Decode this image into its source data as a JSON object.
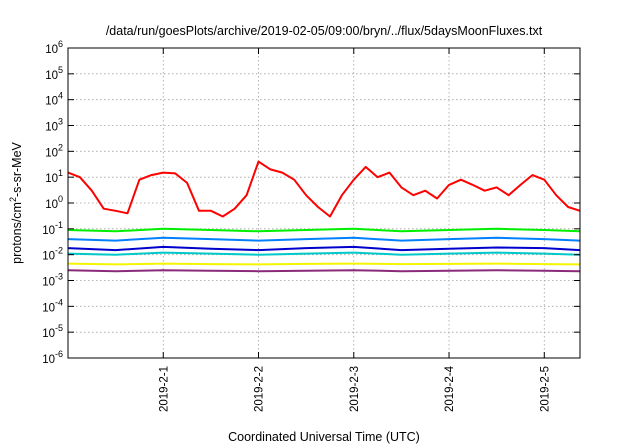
{
  "chart_data": {
    "type": "line",
    "title": "/data/run/goesPlots/archive/2019-02-05/09:00/bryn/../flux/5daysMoonFluxes.txt",
    "xlabel": "Coordinated Universal Time (UTC)",
    "ylabel_parts": {
      "a": "protons/cm",
      "sup": "2",
      "b": "-s-sr-MeV"
    },
    "ylim": [
      1e-06,
      1000000.0
    ],
    "y_scale": "log",
    "y_ticks": [
      {
        "base": "10",
        "exp": "-6",
        "value": 1e-06
      },
      {
        "base": "10",
        "exp": "-5",
        "value": 1e-05
      },
      {
        "base": "10",
        "exp": "-4",
        "value": 0.0001
      },
      {
        "base": "10",
        "exp": "-3",
        "value": 0.001
      },
      {
        "base": "10",
        "exp": "-2",
        "value": 0.01
      },
      {
        "base": "10",
        "exp": "-1",
        "value": 0.1
      },
      {
        "base": "10",
        "exp": "0",
        "value": 1
      },
      {
        "base": "10",
        "exp": "1",
        "value": 10
      },
      {
        "base": "10",
        "exp": "2",
        "value": 100
      },
      {
        "base": "10",
        "exp": "3",
        "value": 1000
      },
      {
        "base": "10",
        "exp": "4",
        "value": 10000
      },
      {
        "base": "10",
        "exp": "5",
        "value": 100000
      },
      {
        "base": "10",
        "exp": "6",
        "value": 1000000
      }
    ],
    "xlim": [
      "2019-01-31T00:00",
      "2019-02-05T09:00"
    ],
    "x_ticks": [
      {
        "label": "2019-2-1",
        "date": "2019-02-01T00:00"
      },
      {
        "label": "2019-2-2",
        "date": "2019-02-02T00:00"
      },
      {
        "label": "2019-2-3",
        "date": "2019-02-03T00:00"
      },
      {
        "label": "2019-2-4",
        "date": "2019-02-04T00:00"
      },
      {
        "label": "2019-2-5",
        "date": "2019-02-05T00:00"
      }
    ],
    "grid": true,
    "series": [
      {
        "color": "#ff0000",
        "x": [
          "2019-01-31T00:00",
          "2019-01-31T03:00",
          "2019-01-31T06:00",
          "2019-01-31T09:00",
          "2019-01-31T12:00",
          "2019-01-31T15:00",
          "2019-01-31T18:00",
          "2019-01-31T21:00",
          "2019-02-01T00:00",
          "2019-02-01T03:00",
          "2019-02-01T06:00",
          "2019-02-01T09:00",
          "2019-02-01T12:00",
          "2019-02-01T15:00",
          "2019-02-01T18:00",
          "2019-02-01T21:00",
          "2019-02-02T00:00",
          "2019-02-02T03:00",
          "2019-02-02T06:00",
          "2019-02-02T09:00",
          "2019-02-02T12:00",
          "2019-02-02T15:00",
          "2019-02-02T18:00",
          "2019-02-02T21:00",
          "2019-02-03T00:00",
          "2019-02-03T03:00",
          "2019-02-03T06:00",
          "2019-02-03T09:00",
          "2019-02-03T12:00",
          "2019-02-03T15:00",
          "2019-02-03T18:00",
          "2019-02-03T21:00",
          "2019-02-04T00:00",
          "2019-02-04T03:00",
          "2019-02-04T06:00",
          "2019-02-04T09:00",
          "2019-02-04T12:00",
          "2019-02-04T15:00",
          "2019-02-04T18:00",
          "2019-02-04T21:00",
          "2019-02-05T00:00",
          "2019-02-05T03:00",
          "2019-02-05T06:00",
          "2019-02-05T09:00"
        ],
        "values": [
          15,
          10,
          3,
          0.6,
          0.5,
          0.4,
          8,
          12,
          15,
          14,
          6,
          0.5,
          0.5,
          0.3,
          0.6,
          2,
          40,
          20,
          15,
          8,
          2,
          0.7,
          0.3,
          2,
          8,
          25,
          10,
          15,
          4,
          2,
          3,
          1.5,
          5,
          8,
          5,
          3,
          4,
          2,
          5,
          12,
          8,
          2,
          0.7,
          0.5
        ]
      },
      {
        "color": "#00ee00",
        "x": [
          "2019-01-31T00:00",
          "2019-01-31T12:00",
          "2019-02-01T00:00",
          "2019-02-01T12:00",
          "2019-02-02T00:00",
          "2019-02-02T12:00",
          "2019-02-03T00:00",
          "2019-02-03T12:00",
          "2019-02-04T00:00",
          "2019-02-04T12:00",
          "2019-02-05T00:00",
          "2019-02-05T09:00"
        ],
        "values": [
          0.09,
          0.08,
          0.1,
          0.09,
          0.08,
          0.09,
          0.1,
          0.08,
          0.09,
          0.1,
          0.09,
          0.08
        ]
      },
      {
        "color": "#0080ff",
        "x": [
          "2019-01-31T00:00",
          "2019-01-31T12:00",
          "2019-02-01T00:00",
          "2019-02-01T12:00",
          "2019-02-02T00:00",
          "2019-02-02T12:00",
          "2019-02-03T00:00",
          "2019-02-03T12:00",
          "2019-02-04T00:00",
          "2019-02-04T12:00",
          "2019-02-05T00:00",
          "2019-02-05T09:00"
        ],
        "values": [
          0.04,
          0.035,
          0.045,
          0.04,
          0.035,
          0.04,
          0.045,
          0.035,
          0.04,
          0.045,
          0.04,
          0.035
        ]
      },
      {
        "color": "#0000cc",
        "x": [
          "2019-01-31T00:00",
          "2019-01-31T12:00",
          "2019-02-01T00:00",
          "2019-02-01T12:00",
          "2019-02-02T00:00",
          "2019-02-02T12:00",
          "2019-02-03T00:00",
          "2019-02-03T12:00",
          "2019-02-04T00:00",
          "2019-02-04T12:00",
          "2019-02-05T00:00",
          "2019-02-05T09:00"
        ],
        "values": [
          0.018,
          0.015,
          0.02,
          0.017,
          0.015,
          0.018,
          0.02,
          0.015,
          0.017,
          0.019,
          0.018,
          0.015
        ]
      },
      {
        "color": "#00c8c8",
        "x": [
          "2019-01-31T00:00",
          "2019-01-31T12:00",
          "2019-02-01T00:00",
          "2019-02-01T12:00",
          "2019-02-02T00:00",
          "2019-02-02T12:00",
          "2019-02-03T00:00",
          "2019-02-03T12:00",
          "2019-02-04T00:00",
          "2019-02-04T12:00",
          "2019-02-05T00:00",
          "2019-02-05T09:00"
        ],
        "values": [
          0.011,
          0.01,
          0.012,
          0.011,
          0.01,
          0.011,
          0.012,
          0.01,
          0.011,
          0.012,
          0.011,
          0.01
        ]
      },
      {
        "color": "#f5f500",
        "x": [
          "2019-01-31T00:00",
          "2019-01-31T12:00",
          "2019-02-01T00:00",
          "2019-02-01T12:00",
          "2019-02-02T00:00",
          "2019-02-02T12:00",
          "2019-02-03T00:00",
          "2019-02-03T12:00",
          "2019-02-04T00:00",
          "2019-02-04T12:00",
          "2019-02-05T00:00",
          "2019-02-05T09:00"
        ],
        "values": [
          0.0045,
          0.0042,
          0.0045,
          0.0043,
          0.0042,
          0.0044,
          0.0045,
          0.0043,
          0.0044,
          0.0045,
          0.0043,
          0.0042
        ]
      },
      {
        "color": "#8b2a7a",
        "x": [
          "2019-01-31T00:00",
          "2019-01-31T12:00",
          "2019-02-01T00:00",
          "2019-02-01T12:00",
          "2019-02-02T00:00",
          "2019-02-02T12:00",
          "2019-02-03T00:00",
          "2019-02-03T12:00",
          "2019-02-04T00:00",
          "2019-02-04T12:00",
          "2019-02-05T00:00",
          "2019-02-05T09:00"
        ],
        "values": [
          0.0025,
          0.0023,
          0.0025,
          0.0024,
          0.0023,
          0.0024,
          0.0025,
          0.0023,
          0.0024,
          0.0025,
          0.0024,
          0.0023
        ]
      }
    ]
  }
}
